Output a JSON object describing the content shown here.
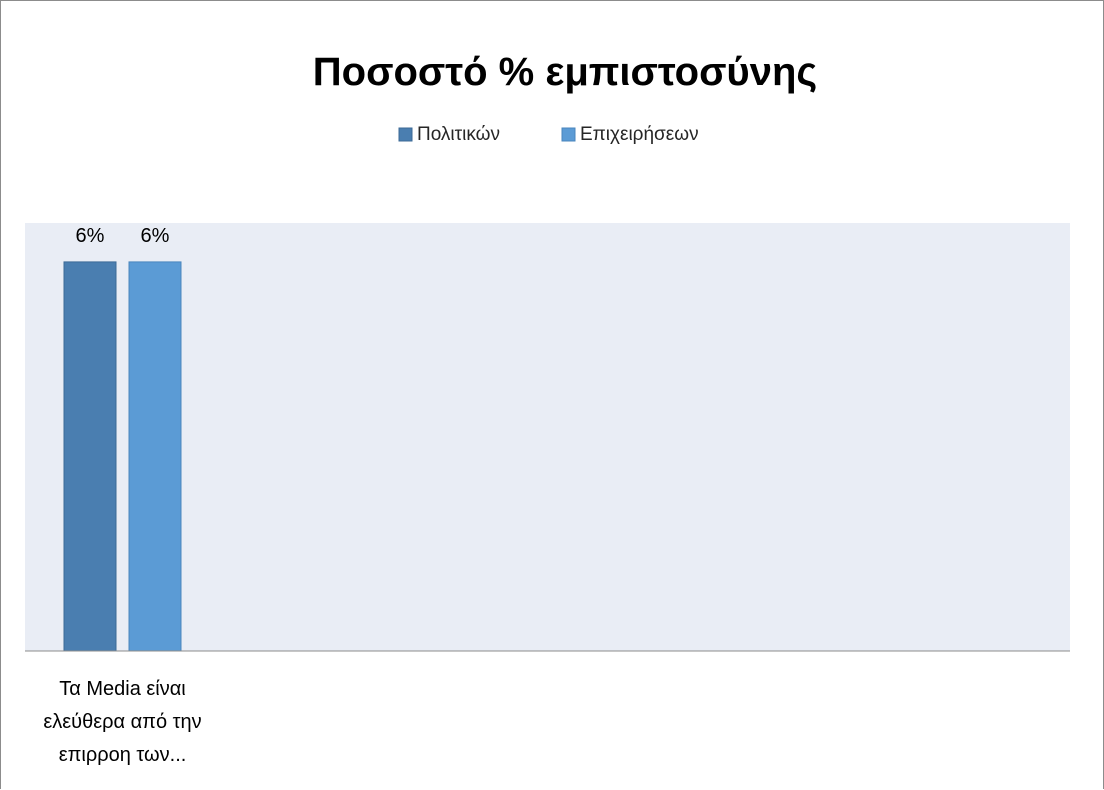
{
  "chart_data": {
    "type": "bar",
    "title": "Ποσοστό % εμπιστοσύνης",
    "categories": [
      "Τα Media είναι ελεύθερα  από την επιρροη των..."
    ],
    "category_label_lines": [
      [
        "Τα Media είναι",
        "ελεύθερα  από την",
        "επιρροη των..."
      ]
    ],
    "series": [
      {
        "name": "Πολιτικών",
        "values": [
          6
        ],
        "labels": [
          "6%"
        ],
        "color": "#4a7eb0"
      },
      {
        "name": "Επιχειρήσεων",
        "values": [
          6
        ],
        "labels": [
          "6%"
        ],
        "color": "#5b9bd5"
      }
    ],
    "ylim": [
      0,
      6.6
    ],
    "value_unit": "%",
    "legend_position": "top-center",
    "plot_background": "#e9edf5",
    "grid": false,
    "axis_line_color": "#8c8c8c"
  }
}
